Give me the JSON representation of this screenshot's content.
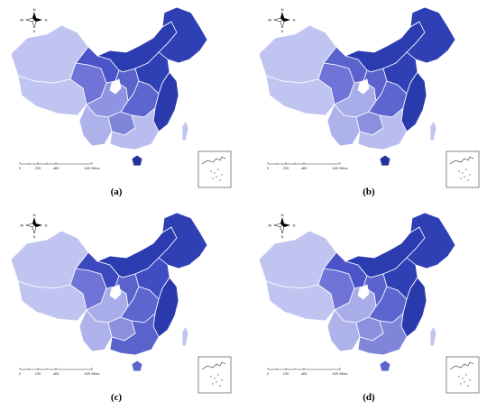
{
  "figure": {
    "panels": [
      {
        "id": "a",
        "caption": "(a)",
        "shades": [
          "#c0c4f0",
          "#c0c4f0",
          "#6f74d6",
          "#4a54c8",
          "#2b3bb0",
          "#2f3fb4",
          "#8e94e2",
          "#5a62cc",
          "#aeb2ea",
          "#7f86da",
          "#5d66cf",
          "#2f3fb4",
          "#2a3aad",
          "#b8bcee",
          "#243399",
          "#c0c4f0"
        ]
      },
      {
        "id": "b",
        "caption": "(b)",
        "shades": [
          "#c0c4f0",
          "#c0c4f0",
          "#6f74d6",
          "#5a62cc",
          "#2b3bb0",
          "#2f3fb4",
          "#a8ace8",
          "#5a62cc",
          "#aeb2ea",
          "#8a90de",
          "#5d66cf",
          "#2f3fb4",
          "#2a3aad",
          "#b8bcee",
          "#243399",
          "#c0c4f0"
        ]
      },
      {
        "id": "c",
        "caption": "(c)",
        "shades": [
          "#c0c4f0",
          "#c0c4f0",
          "#6f74d6",
          "#3d48bf",
          "#2b3bb0",
          "#2f3fb4",
          "#a8ace8",
          "#5a62cc",
          "#aeb2ea",
          "#8a90de",
          "#5d66cf",
          "#3f4cc2",
          "#2a3aad",
          "#5a62cc",
          "#5d66cf",
          "#c0c4f0"
        ]
      },
      {
        "id": "d",
        "caption": "(d)",
        "shades": [
          "#c0c4f0",
          "#c0c4f0",
          "#6f74d6",
          "#4a54c8",
          "#2b3bb0",
          "#2f3fb4",
          "#a8ace8",
          "#5a62cc",
          "#aeb2ea",
          "#8a90de",
          "#5d66cf",
          "#2f3fb4",
          "#2a3aad",
          "#7f86da",
          "#5d66cf",
          "#c0c4f0"
        ]
      }
    ],
    "scale_bar": {
      "ticks": [
        "0",
        "230",
        "460",
        "920 Miles"
      ]
    },
    "compass": {
      "n": "N",
      "s": "S",
      "e": "E",
      "w": "W"
    },
    "colors": {
      "outline": "#ffffff",
      "inset_border": "#333333",
      "accent": "#2b3bb0"
    }
  }
}
